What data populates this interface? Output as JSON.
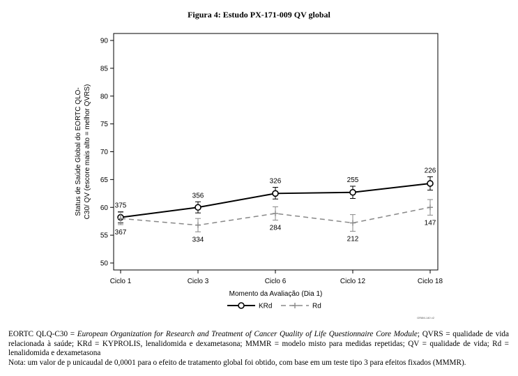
{
  "figure_title": "Figura 4: Estudo PX-171-009 QV global",
  "chart_data": {
    "type": "line",
    "title": "",
    "xlabel": "Momento da Avaliação (Dia 1)",
    "ylabel_lines": [
      "Status de Saúde Global do EORTC QLO-",
      "C30/ QV (escore mais alto = melhor QVRS)"
    ],
    "categories": [
      "Ciclo 1",
      "Ciclo 3",
      "Ciclo 6",
      "Ciclo 12",
      "Ciclo 18"
    ],
    "ylim": [
      50,
      90
    ],
    "yticks": [
      50,
      55,
      60,
      65,
      70,
      75,
      80,
      85,
      90
    ],
    "grid": false,
    "legend_position": "bottom",
    "series": [
      {
        "name": "KRd",
        "style": "solid-circle",
        "color": "#000000",
        "values": [
          58.2,
          60.0,
          62.5,
          62.7,
          64.3
        ],
        "ci_low": [
          57.2,
          59.0,
          61.5,
          61.6,
          63.1
        ],
        "ci_high": [
          59.2,
          61.0,
          63.6,
          63.8,
          65.5
        ],
        "n_labels": [
          "375",
          "356",
          "326",
          "255",
          "226"
        ]
      },
      {
        "name": "Rd",
        "style": "dashed-plus",
        "color": "#888888",
        "values": [
          58.0,
          56.8,
          58.9,
          57.2,
          60.0
        ],
        "ci_low": [
          56.9,
          55.6,
          57.7,
          55.7,
          58.6
        ],
        "ci_high": [
          59.1,
          58.0,
          60.1,
          58.7,
          61.4
        ],
        "n_labels": [
          "367",
          "334",
          "284",
          "212",
          "147"
        ]
      }
    ],
    "footnote_code": "GR8M-140 v2"
  },
  "caption": {
    "line1_prefix": "EORTC QLQ-C30 = ",
    "line1_italic": "European Organization for Research and Treatment of Cancer Quality of Life Questionnaire Core Module",
    "line1_suffix": "; QVRS = qualidade de vida relacionada à saúde; KRd = KYPROLIS, lenalidomida e dexametasona; MMMR = modelo misto para medidas repetidas; QV = qualidade de vida; Rd = lenalidomida e dexametasona",
    "line2": "Nota: um valor de p unicaudal de 0,0001 para o efeito de tratamento global foi obtido, com base em um teste tipo 3 para efeitos fixados (MMMR)."
  }
}
